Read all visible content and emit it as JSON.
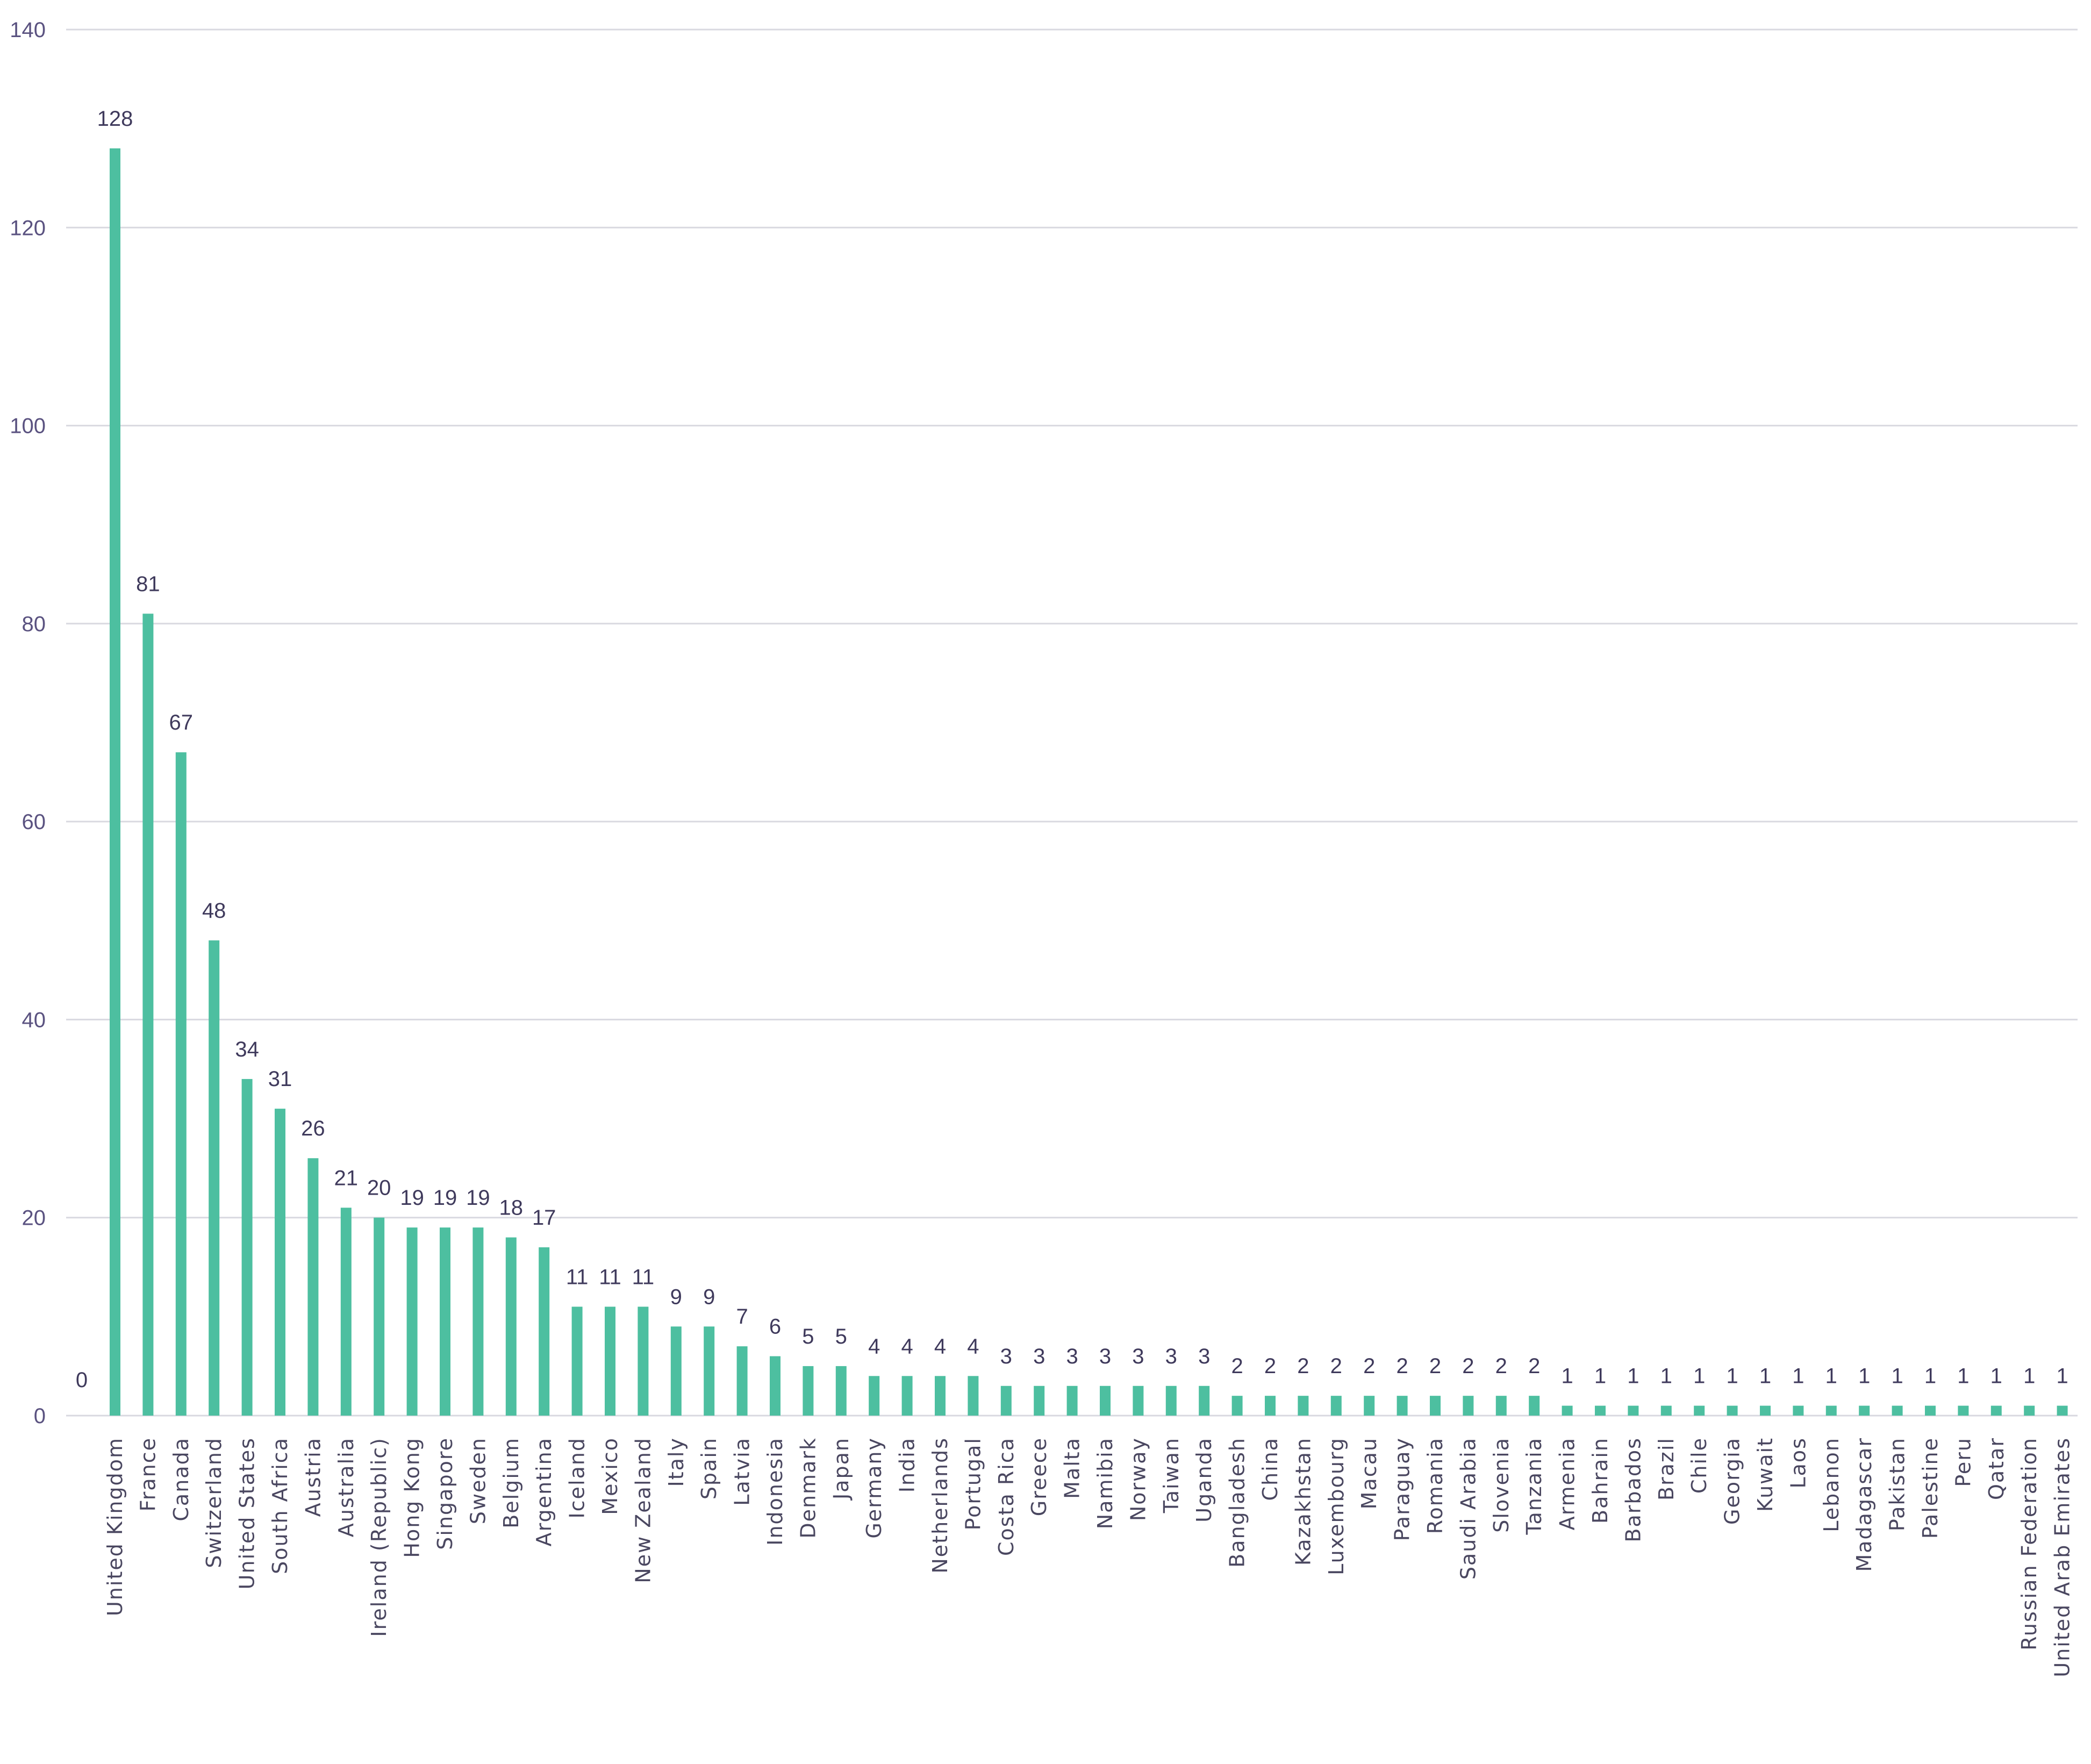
{
  "chart_data": {
    "type": "bar",
    "title": "",
    "xlabel": "",
    "ylabel": "",
    "ylim": [
      0,
      140
    ],
    "yticks": [
      0,
      20,
      40,
      60,
      80,
      100,
      120,
      140
    ],
    "grid": true,
    "bar_color": "#4dbfa0",
    "categories": [
      "United Kingdom",
      "France",
      "Canada",
      "Switzerland",
      "United States",
      "South Africa",
      "Austria",
      "Australia",
      "Ireland (Republic)",
      "Hong Kong",
      "Singapore",
      "Sweden",
      "Belgium",
      "Argentina",
      "Iceland",
      "Mexico",
      "New Zealand",
      "Italy",
      "Spain",
      "Latvia",
      "Indonesia",
      "Denmark",
      "Japan",
      "Germany",
      "India",
      "Netherlands",
      "Portugal",
      "Costa Rica",
      "Greece",
      "Malta",
      "Namibia",
      "Norway",
      "Taiwan",
      "Uganda",
      "Bangladesh",
      "China",
      "Kazakhstan",
      "Luxembourg",
      "Macau",
      "Paraguay",
      "Romania",
      "Saudi Arabia",
      "Slovenia",
      "Tanzania",
      "Armenia",
      "Bahrain",
      "Barbados",
      "Brazil",
      "Chile",
      "Georgia",
      "Kuwait",
      "Laos",
      "Lebanon",
      "Madagascar",
      "Pakistan",
      "Palestine",
      "Peru",
      "Qatar",
      "Russian Federation",
      "United Arab Emirates"
    ],
    "values": [
      128,
      81,
      67,
      48,
      34,
      31,
      26,
      21,
      20,
      19,
      19,
      19,
      18,
      17,
      11,
      11,
      11,
      9,
      9,
      7,
      6,
      5,
      5,
      4,
      4,
      4,
      4,
      3,
      3,
      3,
      3,
      3,
      3,
      3,
      2,
      2,
      2,
      2,
      2,
      2,
      2,
      2,
      2,
      2,
      1,
      1,
      1,
      1,
      1,
      1,
      1,
      1,
      1,
      1,
      1,
      1,
      1,
      1,
      1,
      1
    ],
    "data_labels": [
      "128",
      "81",
      "67",
      "48",
      "34",
      "31",
      "26",
      "21",
      "20",
      "19",
      "19",
      "19",
      "18",
      "17",
      "11",
      "11",
      "11",
      "9",
      "9",
      "7",
      "6",
      "5",
      "5",
      "4",
      "4",
      "4",
      "4",
      "3",
      "3",
      "3",
      "3",
      "3",
      "3",
      "3",
      "2",
      "2",
      "2",
      "2",
      "2",
      "2",
      "2",
      "2",
      "2",
      "2",
      "1",
      "1",
      "1",
      "1",
      "1",
      "1",
      "1",
      "1",
      "1",
      "1",
      "1",
      "1",
      "1",
      "1",
      "1",
      "1"
    ],
    "extra_label": "0"
  }
}
